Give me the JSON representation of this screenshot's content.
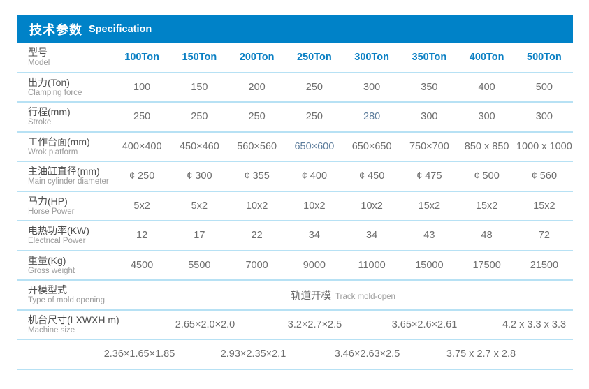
{
  "header": {
    "title_zh": "技术参数",
    "title_en": "Specification"
  },
  "colors": {
    "header_bar": "#0082c8",
    "column_header_text": "#0b80c4",
    "separator_line": "#b7e1f4",
    "value_text": "#6e6e6e",
    "label_zh_text": "#4e4e4e",
    "label_en_text": "#9b9b9b"
  },
  "table": {
    "model_row": {
      "label_zh": "型号",
      "label_en": "Model",
      "columns": [
        "100Ton",
        "150Ton",
        "200Ton",
        "250Ton",
        "300Ton",
        "350Ton",
        "400Ton",
        "500Ton"
      ]
    },
    "rows": [
      {
        "key": "clamping-force",
        "label_zh": "出力(Ton)",
        "label_en": "Clamping force",
        "values": [
          "100",
          "150",
          "200",
          "250",
          "300",
          "350",
          "400",
          "500"
        ],
        "highlight": []
      },
      {
        "key": "stroke",
        "label_zh": "行程(mm)",
        "label_en": "Stroke",
        "values": [
          "250",
          "250",
          "250",
          "250",
          "280",
          "300",
          "300",
          "300"
        ],
        "highlight": [
          4
        ]
      },
      {
        "key": "work-platform",
        "label_zh": "工作台面(mm)",
        "label_en": "Wrok platform",
        "values": [
          "400×400",
          "450×460",
          "560×560",
          "650×600",
          "650×650",
          "750×700",
          "850 x 850",
          "1000 x 1000"
        ],
        "highlight": [
          3
        ]
      },
      {
        "key": "main-cylinder-diameter",
        "label_zh": "主油缸直径(mm)",
        "label_en": "Main cylinder diameter",
        "values": [
          "¢ 250",
          "¢ 300",
          "¢ 355",
          "¢ 400",
          "¢ 450",
          "¢ 475",
          "¢ 500",
          "¢ 560"
        ],
        "highlight": []
      },
      {
        "key": "horse-power",
        "label_zh": "马力(HP)",
        "label_en": "Horse Power",
        "values": [
          "5x2",
          "5x2",
          "10x2",
          "10x2",
          "10x2",
          "15x2",
          "15x2",
          "15x2"
        ],
        "highlight": []
      },
      {
        "key": "electrical-power",
        "label_zh": "电热功率(KW)",
        "label_en": "Electrical Power",
        "values": [
          "12",
          "17",
          "22",
          "34",
          "34",
          "43",
          "48",
          "72"
        ],
        "highlight": []
      },
      {
        "key": "gross-weight",
        "label_zh": "重量(Kg)",
        "label_en": "Gross weight",
        "values": [
          "4500",
          "5500",
          "7000",
          "9000",
          "11000",
          "15000",
          "17500",
          "21500"
        ],
        "highlight": []
      }
    ],
    "mold_row": {
      "key": "type-of-mold-opening",
      "label_zh": "开模型式",
      "label_en": "Type of mold opening",
      "value_zh": "轨道开模",
      "value_en": "Track mold-open"
    },
    "size_row": {
      "key": "machine-size",
      "label_zh": "机台尺寸(LXWXH m)",
      "label_en": "Machine size",
      "values": [
        "2.65×2.0×2.0",
        "3.2×2.7×2.5",
        "3.65×2.6×2.61",
        "4.2 x 3.3 x 3.3"
      ]
    },
    "footer_row": {
      "key": "machine-size-2",
      "values": [
        "2.36×1.65×1.85",
        "2.93×2.35×2.1",
        "3.46×2.63×2.5",
        "3.75 x 2.7 x 2.8"
      ]
    }
  }
}
